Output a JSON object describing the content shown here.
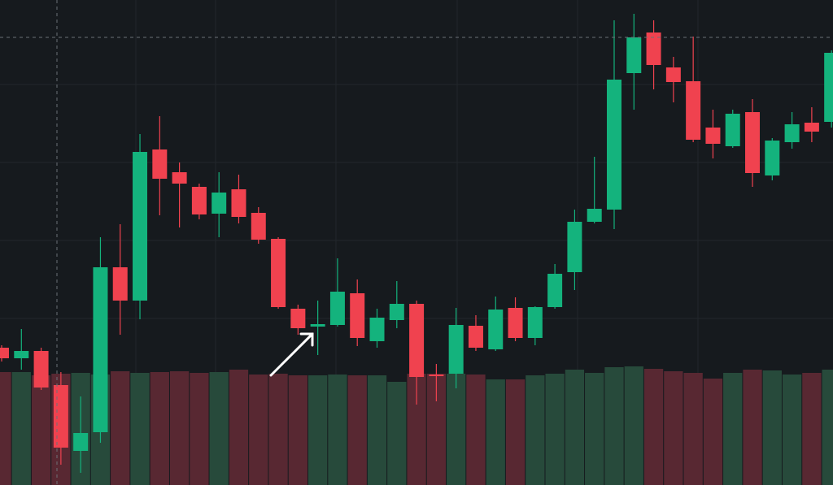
{
  "chart_data": {
    "type": "candlestick",
    "ylim": [
      0,
      597
    ],
    "volume_ylim": [
      0,
      597
    ],
    "up_color": "#14b37d",
    "down_color": "#f0424f",
    "volume_up_color": "#274a3b",
    "volume_down_color": "#582832",
    "open": [
      169,
      156,
      165,
      123,
      42,
      65,
      268,
      227,
      413,
      385,
      367,
      334,
      364,
      335,
      303,
      217,
      195,
      197,
      236,
      177,
      203,
      223,
      136,
      137,
      196,
      167,
      218,
      181,
      219,
      262,
      324,
      339,
      507,
      557,
      514,
      497,
      440,
      417,
      459,
      381,
      422,
      446,
      447
    ],
    "high": [
      172,
      192,
      169,
      139,
      109,
      305,
      321,
      432,
      454,
      397,
      371,
      385,
      382,
      342,
      305,
      222,
      227,
      279,
      253,
      217,
      251,
      227,
      149,
      218,
      209,
      232,
      231,
      220,
      272,
      339,
      404,
      572,
      580,
      572,
      527,
      552,
      462,
      462,
      475,
      427,
      459,
      465,
      535
    ],
    "low": [
      152,
      142,
      117,
      25,
      15,
      52,
      185,
      204,
      332,
      317,
      327,
      305,
      322,
      297,
      217,
      185,
      160,
      195,
      171,
      169,
      193,
      99,
      103,
      119,
      165,
      165,
      177,
      172,
      217,
      240,
      322,
      315,
      462,
      487,
      471,
      422,
      402,
      415,
      367,
      375,
      414,
      422,
      440
    ],
    "close": [
      156,
      165,
      120,
      46,
      64,
      268,
      227,
      410,
      377,
      371,
      333,
      360,
      330,
      302,
      219,
      193,
      198,
      238,
      181,
      206,
      223,
      133,
      134,
      197,
      169,
      216,
      181,
      219,
      260,
      324,
      340,
      499,
      551,
      517,
      496,
      425,
      420,
      457,
      384,
      424,
      444,
      435,
      532
    ],
    "volume": [
      139,
      139,
      135,
      137,
      138,
      136,
      140,
      138,
      139,
      140,
      138,
      139,
      142,
      136,
      137,
      135,
      135,
      136,
      135,
      135,
      127,
      137,
      137,
      137,
      136,
      130,
      130,
      135,
      137,
      142,
      138,
      145,
      146,
      143,
      140,
      138,
      131,
      138,
      142,
      141,
      136,
      138,
      142
    ]
  }
}
